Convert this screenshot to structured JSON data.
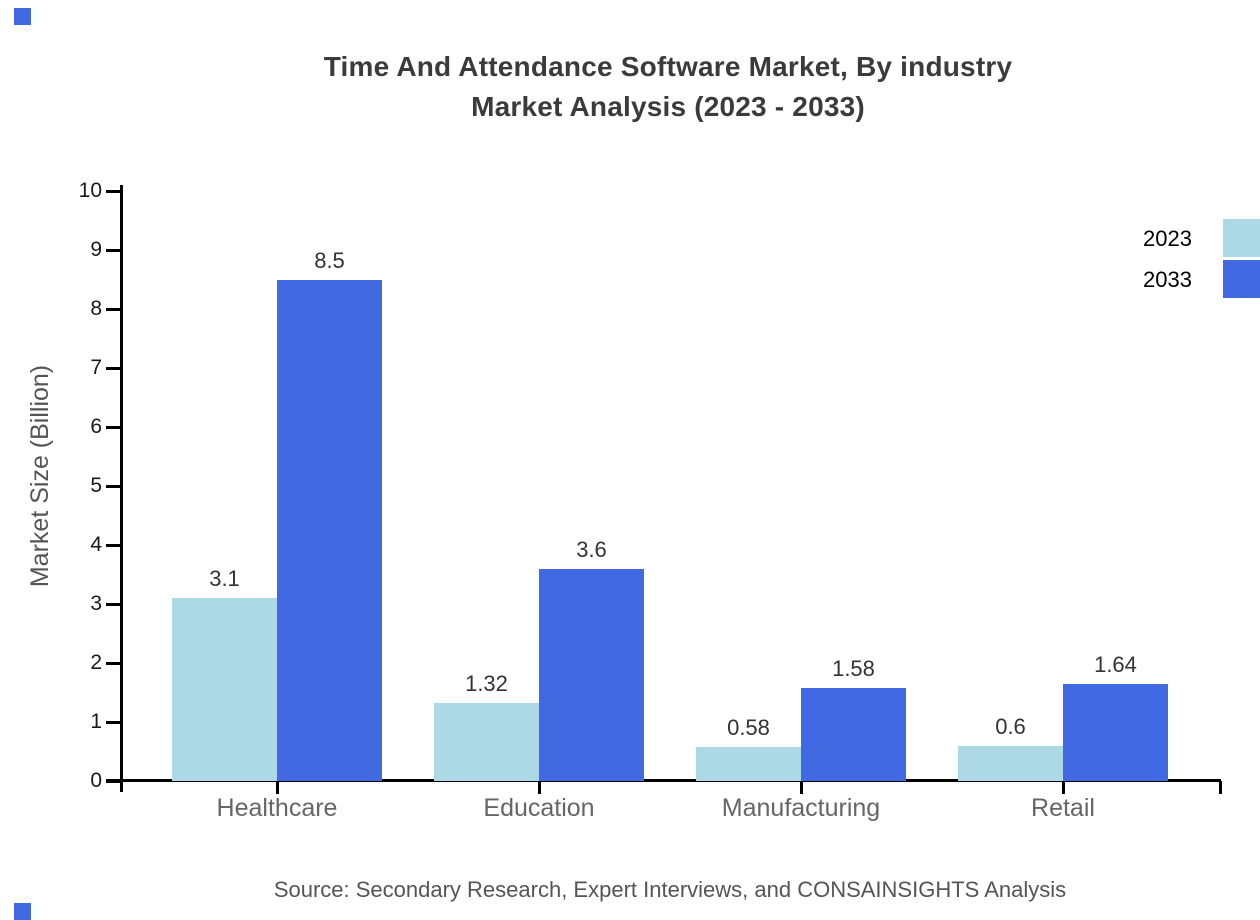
{
  "page": {
    "background": "#ffffff"
  },
  "title": {
    "line1": "Time And Attendance Software Market, By industry",
    "line2": "Market Analysis (2023 - 2033)",
    "color": "#3b3b3b"
  },
  "source_note": "Source: Secondary Research, Expert Interviews, and CONSAINSIGHTS Analysis",
  "legend": {
    "position": "upper-right, swatches clipped at right canvas edge",
    "items": [
      {
        "label": "2023",
        "color": "#ADD8E6"
      },
      {
        "label": "2033",
        "color": "#4169E1"
      }
    ]
  },
  "decorations": {
    "corner_marks_color": "#4169E1",
    "axis_color": "#000000"
  },
  "chart_data": {
    "type": "bar",
    "title": "Time And Attendance Software Market, By industry Market Analysis (2023 - 2033)",
    "categories": [
      "Healthcare",
      "Education",
      "Manufacturing",
      "Retail"
    ],
    "series": [
      {
        "name": "2023",
        "color": "#ADD8E6",
        "values": [
          3.1,
          1.32,
          0.58,
          0.6
        ]
      },
      {
        "name": "2033",
        "color": "#4169E1",
        "values": [
          8.5,
          3.6,
          1.58,
          1.64
        ]
      }
    ],
    "xlabel": "",
    "ylabel": "Market Size (Billion)",
    "ylim": [
      0,
      10
    ],
    "yticks": [
      0,
      1,
      2,
      3,
      4,
      5,
      6,
      7,
      8,
      9,
      10
    ],
    "grid": false,
    "bar_value_labels": true,
    "legend_position": "outside top right"
  }
}
